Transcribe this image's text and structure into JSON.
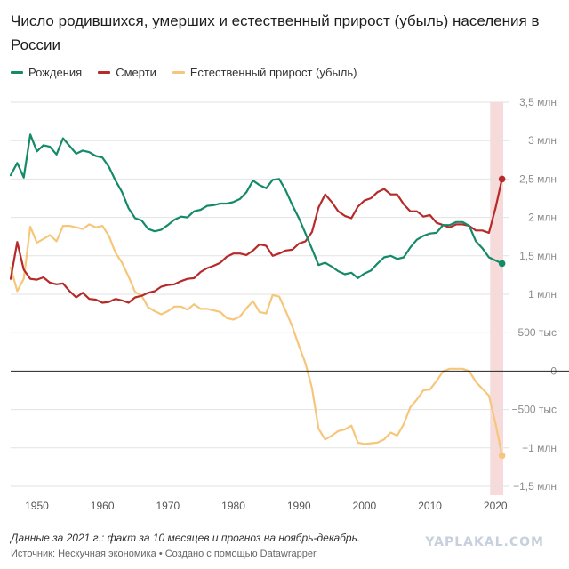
{
  "colors": {
    "births": "#148a68",
    "deaths": "#b62a2a",
    "natural": "#f6c77a",
    "highlight": "#f7dada",
    "grid": "#e2e2e2",
    "zero": "#222222",
    "tick": "#8c8c8c"
  },
  "chart_data": {
    "type": "line",
    "title": "Число родившихся, умерших и естественный прирост (убыль) населения в России",
    "xlabel": "",
    "ylabel": "",
    "xlim": [
      1946,
      2022
    ],
    "ylim": [
      -1500000,
      3500000
    ],
    "x_ticks": [
      {
        "value": 1950,
        "label": "1950"
      },
      {
        "value": 1960,
        "label": "1960"
      },
      {
        "value": 1970,
        "label": "1970"
      },
      {
        "value": 1980,
        "label": "1980"
      },
      {
        "value": 1990,
        "label": "1990"
      },
      {
        "value": 2000,
        "label": "2000"
      },
      {
        "value": 2010,
        "label": "2010"
      },
      {
        "value": 2020,
        "label": "2020"
      }
    ],
    "y_ticks": [
      {
        "value": 3500000,
        "label": "3,5 млн"
      },
      {
        "value": 3000000,
        "label": "3 млн"
      },
      {
        "value": 2500000,
        "label": "2,5 млн"
      },
      {
        "value": 2000000,
        "label": "2 млн"
      },
      {
        "value": 1500000,
        "label": "1,5 млн"
      },
      {
        "value": 1000000,
        "label": "1 млн"
      },
      {
        "value": 500000,
        "label": "500 тыс"
      },
      {
        "value": 0,
        "label": "0"
      },
      {
        "value": -500000,
        "label": "−500 тыс"
      },
      {
        "value": -1000000,
        "label": "−1 млн"
      },
      {
        "value": -1500000,
        "label": "−1,5 млн"
      }
    ],
    "grid": true,
    "legend_position": "top-left",
    "highlight_range": [
      2020,
      2022
    ],
    "x": [
      1946,
      1947,
      1948,
      1949,
      1950,
      1951,
      1952,
      1953,
      1954,
      1955,
      1956,
      1957,
      1958,
      1959,
      1960,
      1961,
      1962,
      1963,
      1964,
      1965,
      1966,
      1967,
      1968,
      1969,
      1970,
      1971,
      1972,
      1973,
      1974,
      1975,
      1976,
      1977,
      1978,
      1979,
      1980,
      1981,
      1982,
      1983,
      1984,
      1985,
      1986,
      1987,
      1988,
      1989,
      1990,
      1991,
      1992,
      1993,
      1994,
      1995,
      1996,
      1997,
      1998,
      1999,
      2000,
      2001,
      2002,
      2003,
      2004,
      2005,
      2006,
      2007,
      2008,
      2009,
      2010,
      2011,
      2012,
      2013,
      2014,
      2015,
      2016,
      2017,
      2018,
      2019,
      2020,
      2021
    ],
    "series": [
      {
        "name": "Рождения",
        "color": "births",
        "end_marker": true,
        "values": [
          2550000,
          2710000,
          2520000,
          3080000,
          2860000,
          2940000,
          2920000,
          2820000,
          3030000,
          2930000,
          2830000,
          2870000,
          2850000,
          2800000,
          2780000,
          2660000,
          2480000,
          2330000,
          2120000,
          1990000,
          1960000,
          1850000,
          1820000,
          1840000,
          1900000,
          1970000,
          2010000,
          2000000,
          2080000,
          2100000,
          2150000,
          2160000,
          2180000,
          2180000,
          2200000,
          2240000,
          2330000,
          2480000,
          2420000,
          2380000,
          2490000,
          2500000,
          2350000,
          2160000,
          1990000,
          1790000,
          1590000,
          1380000,
          1410000,
          1360000,
          1300000,
          1260000,
          1280000,
          1210000,
          1270000,
          1310000,
          1400000,
          1480000,
          1500000,
          1460000,
          1480000,
          1610000,
          1710000,
          1760000,
          1790000,
          1800000,
          1900000,
          1900000,
          1940000,
          1940000,
          1890000,
          1690000,
          1600000,
          1480000,
          1440000,
          1400000
        ]
      },
      {
        "name": "Смерти",
        "color": "deaths",
        "end_marker": true,
        "values": [
          1200000,
          1680000,
          1320000,
          1200000,
          1190000,
          1220000,
          1150000,
          1130000,
          1140000,
          1040000,
          960000,
          1020000,
          940000,
          930000,
          890000,
          900000,
          940000,
          920000,
          890000,
          960000,
          980000,
          1020000,
          1040000,
          1100000,
          1120000,
          1130000,
          1170000,
          1200000,
          1210000,
          1290000,
          1340000,
          1370000,
          1410000,
          1490000,
          1530000,
          1530000,
          1510000,
          1570000,
          1650000,
          1630000,
          1500000,
          1530000,
          1570000,
          1580000,
          1660000,
          1690000,
          1810000,
          2130000,
          2300000,
          2200000,
          2080000,
          2020000,
          1990000,
          2140000,
          2220000,
          2250000,
          2330000,
          2370000,
          2300000,
          2300000,
          2170000,
          2080000,
          2080000,
          2010000,
          2030000,
          1930000,
          1900000,
          1870000,
          1910000,
          1910000,
          1890000,
          1830000,
          1830000,
          1800000,
          2120000,
          2500000
        ]
      },
      {
        "name": "Естественный прирост (убыль)",
        "color": "natural",
        "end_marker": true,
        "values": [
          1350000,
          1040000,
          1200000,
          1880000,
          1670000,
          1720000,
          1770000,
          1690000,
          1890000,
          1890000,
          1870000,
          1850000,
          1910000,
          1870000,
          1890000,
          1760000,
          1540000,
          1410000,
          1230000,
          1030000,
          980000,
          830000,
          780000,
          740000,
          780000,
          840000,
          840000,
          800000,
          870000,
          810000,
          810000,
          790000,
          770000,
          690000,
          670000,
          710000,
          820000,
          910000,
          770000,
          750000,
          990000,
          970000,
          780000,
          580000,
          330000,
          100000,
          -220000,
          -750000,
          -890000,
          -840000,
          -780000,
          -760000,
          -710000,
          -930000,
          -950000,
          -940000,
          -930000,
          -890000,
          -800000,
          -840000,
          -690000,
          -470000,
          -370000,
          -250000,
          -240000,
          -130000,
          -4000,
          30000,
          30000,
          30000,
          0,
          -140000,
          -230000,
          -320000,
          -680000,
          -1100000
        ]
      }
    ]
  },
  "footer": {
    "note": "Данные за 2021 г.: факт за 10 месяцев и прогноз на ноябрь-декабрь.",
    "source_label": "Источник:",
    "source_name": "Нескучная экономика",
    "separator": "•",
    "created_with": "Создано с помощью Datawrapper"
  },
  "watermark": "YAPLAKAL.COM"
}
